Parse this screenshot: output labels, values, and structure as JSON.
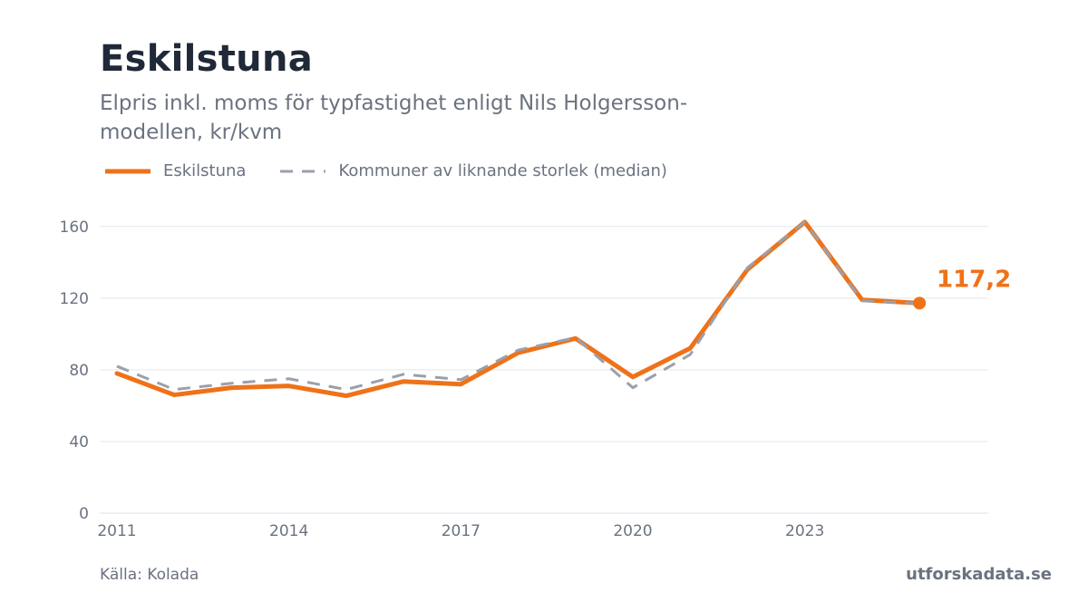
{
  "title": "Eskilstuna",
  "subtitle": "Elpris inkl. moms för typfastighet enligt Nils Holgersson-modellen, kr/kvm",
  "source": "Källa: Kolada",
  "brand": "utforskadata.se",
  "colors": {
    "primary": "#ee7218",
    "median": "#9aa0ad",
    "text": "#6b7280",
    "title": "#1f2937",
    "grid": "#e5e7eb"
  },
  "chart_data": {
    "type": "line",
    "x": [
      2011,
      2012,
      2013,
      2014,
      2015,
      2016,
      2017,
      2018,
      2019,
      2020,
      2021,
      2022,
      2023,
      2024,
      2025
    ],
    "series": [
      {
        "name": "Eskilstuna",
        "style": "solid",
        "color": "#ee7218",
        "values": [
          78,
          66,
          70,
          71,
          65.5,
          73.5,
          72,
          89.5,
          97.5,
          76,
          92,
          136,
          162.5,
          119,
          117.2
        ]
      },
      {
        "name": "Kommuner av liknande storlek (median)",
        "style": "dashed",
        "color": "#9aa0ad",
        "values": [
          82,
          69,
          72.5,
          75,
          69,
          77.5,
          74.5,
          91,
          98,
          70,
          88.5,
          137,
          162.5,
          118.5,
          117
        ]
      }
    ],
    "x_ticks": [
      2011,
      2014,
      2017,
      2020,
      2023
    ],
    "y_ticks": [
      0,
      40,
      80,
      120,
      160
    ],
    "ylim": [
      0,
      170
    ],
    "xlim": [
      2010.7,
      2026.2
    ],
    "end_label": "117,2",
    "grid": true,
    "legend_position": "top-left",
    "xlabel": "",
    "ylabel": ""
  }
}
